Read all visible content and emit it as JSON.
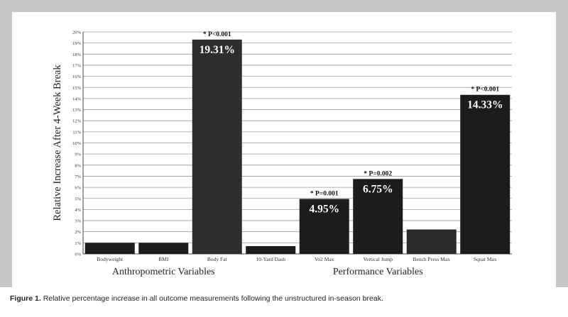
{
  "chart_data": {
    "type": "bar",
    "ylabel": "Relative Increase After 4-Week Break",
    "ylim": [
      0,
      20
    ],
    "yticks": [
      "0%",
      "1%",
      "2%",
      "3%",
      "4%",
      "5%",
      "6%",
      "7%",
      "8%",
      "9%",
      "10%",
      "11%",
      "12%",
      "13%",
      "14%",
      "15%",
      "16%",
      "17%",
      "18%",
      "19%",
      "20%"
    ],
    "grid": true,
    "categories": [
      "Bodyweight",
      "BMI",
      "Body Fat",
      "10-Yard Dash",
      "Vo2 Max",
      "Vertical Jump",
      "Bench Press Max",
      "Squat Max"
    ],
    "values": [
      1.0,
      1.0,
      19.31,
      0.7,
      4.95,
      6.75,
      2.2,
      14.33
    ],
    "value_labels": [
      "",
      "",
      "19.31%",
      "",
      "4.95%",
      "6.75%",
      "",
      "14.33%"
    ],
    "significance": [
      "",
      "",
      "* P<0.001",
      "",
      "* P=0.001",
      "* P=0.002",
      "",
      "* P<0.001"
    ],
    "groups": [
      {
        "label": "Anthropometric Variables",
        "categories": [
          "Bodyweight",
          "BMI",
          "Body Fat"
        ]
      },
      {
        "label": "Performance Variables",
        "categories": [
          "10-Yard Dash",
          "Vo2 Max",
          "Vertical Jump",
          "Bench Press Max",
          "Squat Max"
        ]
      }
    ],
    "bar_colors": [
      "#1c1c1c",
      "#1c1c1c",
      "#2e2e2e",
      "#1c1c1c",
      "#1c1c1c",
      "#1c1c1c",
      "#2a2a2a",
      "#1c1c1c"
    ]
  },
  "caption": {
    "figure_label": "Figure 1.",
    "text": "Relative percentage increase in all outcome measurements following the unstructured in-season break."
  }
}
